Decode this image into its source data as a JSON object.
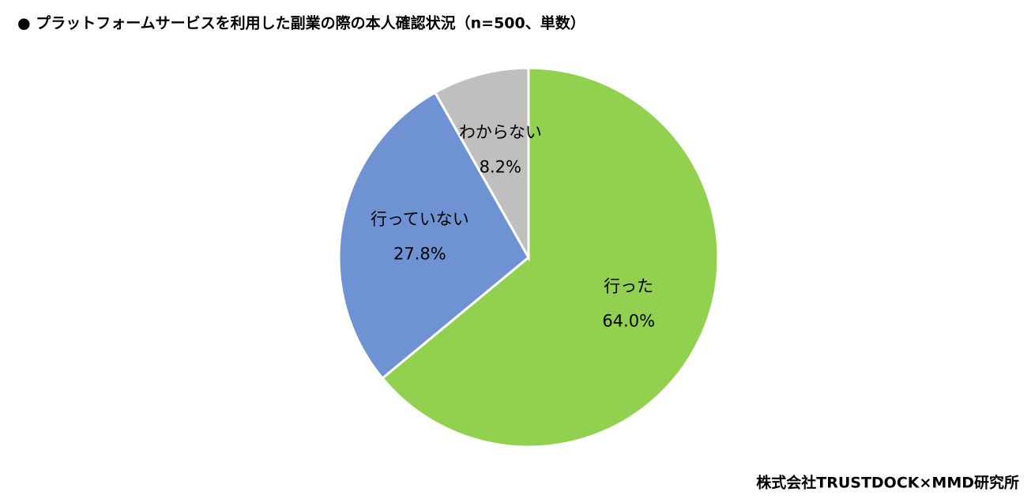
{
  "chart_data": {
    "type": "pie",
    "title": "● プラットフォームサービスを利用した副業の際の本人確認状況（n=500、単数）",
    "categories": [
      "行った",
      "行っていない",
      "わからない"
    ],
    "values": [
      64.0,
      27.8,
      8.2
    ],
    "value_labels": [
      "64.0%",
      "27.8%",
      "8.2%"
    ],
    "colors": [
      "#92d050",
      "#6f93d2",
      "#bfbfbf"
    ],
    "source": "株式会社TRUSTDOCK×MMD研究所"
  }
}
